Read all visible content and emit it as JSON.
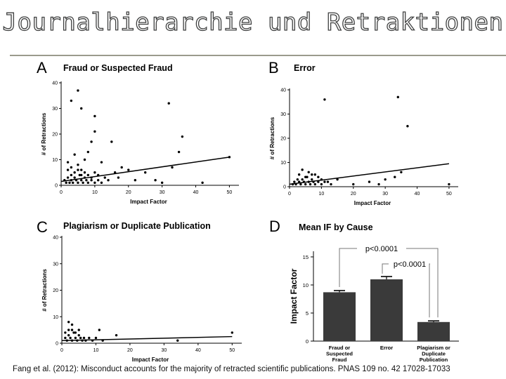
{
  "slide": {
    "title": "Journalhierarchie und Retraktionen",
    "citation": "Fang et al. (2012): Misconduct accounts for the majority of retracted scientific publications. PNAS 109 no. 42 17028-17033"
  },
  "chart_data": [
    {
      "type": "scatter",
      "panel_letter": "A",
      "title": "Fraud or Suspected Fraud",
      "xlabel": "Impact Factor",
      "ylabel": "# of Retractions",
      "xlim": [
        0,
        52
      ],
      "ylim": [
        0,
        40
      ],
      "xticks": [
        0,
        10,
        20,
        30,
        40,
        50
      ],
      "yticks": [
        0,
        10,
        20,
        30,
        40
      ],
      "grid": false,
      "trendline": [
        [
          0,
          1.5
        ],
        [
          50,
          11
        ]
      ],
      "points": [
        [
          3,
          33
        ],
        [
          5,
          37
        ],
        [
          6,
          30
        ],
        [
          10,
          27
        ],
        [
          10,
          21
        ],
        [
          9,
          17
        ],
        [
          15,
          17
        ],
        [
          32,
          32
        ],
        [
          36,
          19
        ],
        [
          35,
          13
        ],
        [
          33,
          7
        ],
        [
          50,
          11
        ],
        [
          8,
          13
        ],
        [
          7,
          10
        ],
        [
          12,
          9
        ],
        [
          20,
          6
        ],
        [
          25,
          5
        ],
        [
          28,
          2
        ],
        [
          30,
          1
        ],
        [
          42,
          1
        ],
        [
          2,
          9
        ],
        [
          3,
          7
        ],
        [
          4,
          12
        ],
        [
          5,
          8
        ],
        [
          6,
          6
        ],
        [
          7,
          5
        ],
        [
          8,
          4
        ],
        [
          9,
          3
        ],
        [
          10,
          5
        ],
        [
          11,
          4
        ],
        [
          13,
          3
        ],
        [
          14,
          2
        ],
        [
          16,
          5
        ],
        [
          17,
          3
        ],
        [
          18,
          7
        ],
        [
          22,
          2
        ],
        [
          1,
          2
        ],
        [
          1.5,
          1
        ],
        [
          2,
          3
        ],
        [
          2.5,
          1
        ],
        [
          3,
          2
        ],
        [
          3.5,
          1
        ],
        [
          4,
          3
        ],
        [
          4.5,
          2
        ],
        [
          5,
          1
        ],
        [
          5.5,
          4
        ],
        [
          6,
          2
        ],
        [
          6.5,
          1
        ],
        [
          7,
          3
        ],
        [
          7.5,
          2
        ],
        [
          8,
          1
        ],
        [
          9,
          2
        ],
        [
          10,
          1
        ],
        [
          11,
          2
        ],
        [
          12,
          1
        ],
        [
          4,
          5
        ],
        [
          3,
          4
        ],
        [
          2,
          6
        ],
        [
          5,
          6
        ],
        [
          6,
          4
        ]
      ]
    },
    {
      "type": "scatter",
      "panel_letter": "B",
      "title": "Error",
      "xlabel": "Impact Factor",
      "ylabel": "# of Retractions",
      "xlim": [
        0,
        52
      ],
      "ylim": [
        0,
        40
      ],
      "xticks": [
        0,
        10,
        20,
        30,
        40,
        50
      ],
      "yticks": [
        0,
        10,
        20,
        30,
        40
      ],
      "grid": false,
      "trendline": [
        [
          0,
          1
        ],
        [
          50,
          9.5
        ]
      ],
      "points": [
        [
          11,
          36
        ],
        [
          34,
          37
        ],
        [
          37,
          25
        ],
        [
          35,
          6
        ],
        [
          33,
          4
        ],
        [
          50,
          1
        ],
        [
          4,
          7
        ],
        [
          6,
          6
        ],
        [
          8,
          5
        ],
        [
          9,
          4
        ],
        [
          10,
          3
        ],
        [
          12,
          2
        ],
        [
          15,
          3
        ],
        [
          20,
          1
        ],
        [
          25,
          2
        ],
        [
          28,
          1
        ],
        [
          30,
          3
        ],
        [
          1,
          1
        ],
        [
          1.5,
          2
        ],
        [
          2,
          1
        ],
        [
          2.5,
          3
        ],
        [
          3,
          2
        ],
        [
          3.5,
          1
        ],
        [
          4,
          3
        ],
        [
          4.5,
          2
        ],
        [
          5,
          1
        ],
        [
          5.5,
          4
        ],
        [
          6,
          2
        ],
        [
          6.5,
          1
        ],
        [
          7,
          3
        ],
        [
          7.5,
          2
        ],
        [
          8,
          1
        ],
        [
          9,
          2
        ],
        [
          10,
          1
        ],
        [
          11,
          2
        ],
        [
          13,
          1
        ],
        [
          3,
          5
        ],
        [
          5,
          4
        ],
        [
          7,
          5
        ]
      ]
    },
    {
      "type": "scatter",
      "panel_letter": "C",
      "title": "Plagiarism or Duplicate Publication",
      "xlabel": "Impact Factor",
      "ylabel": "# of Retractions",
      "xlim": [
        0,
        52
      ],
      "ylim": [
        0,
        40
      ],
      "xticks": [
        0,
        10,
        20,
        30,
        40,
        50
      ],
      "yticks": [
        0,
        10,
        20,
        30,
        40
      ],
      "grid": false,
      "trendline": [
        [
          0,
          1
        ],
        [
          50,
          2.5
        ]
      ],
      "points": [
        [
          2,
          8
        ],
        [
          3,
          7
        ],
        [
          3,
          5
        ],
        [
          11,
          5
        ],
        [
          16,
          3
        ],
        [
          50,
          4
        ],
        [
          34,
          1
        ],
        [
          1,
          2
        ],
        [
          1.5,
          1
        ],
        [
          2,
          3
        ],
        [
          2.5,
          2
        ],
        [
          3,
          1
        ],
        [
          3.5,
          4
        ],
        [
          4,
          2
        ],
        [
          4.5,
          1
        ],
        [
          5,
          3
        ],
        [
          5.5,
          2
        ],
        [
          6,
          1
        ],
        [
          6.5,
          2
        ],
        [
          7,
          1
        ],
        [
          8,
          2
        ],
        [
          9,
          1
        ],
        [
          10,
          2
        ],
        [
          12,
          1
        ],
        [
          2,
          5
        ],
        [
          4,
          4
        ],
        [
          1,
          4
        ],
        [
          5,
          5
        ]
      ]
    },
    {
      "type": "bar",
      "panel_letter": "D",
      "title": "Mean IF by Cause",
      "ylabel": "Impact Factor",
      "ylim": [
        0,
        16
      ],
      "yticks": [
        0,
        5,
        10,
        15
      ],
      "categories": [
        "Fraud or Suspected Fraud",
        "Error",
        "Plagiarism or Duplicate Publication"
      ],
      "category_lines": [
        [
          "Fraud or",
          "Suspected",
          "Fraud"
        ],
        [
          "Error"
        ],
        [
          "Plagiarism or",
          "Duplicate",
          "Publication"
        ]
      ],
      "values": [
        8.7,
        11.0,
        3.4
      ],
      "errors": [
        0.3,
        0.5,
        0.2
      ],
      "bar_color": "#3a3a3a",
      "annotations": [
        "p<0.0001",
        "p<0.0001"
      ]
    }
  ]
}
